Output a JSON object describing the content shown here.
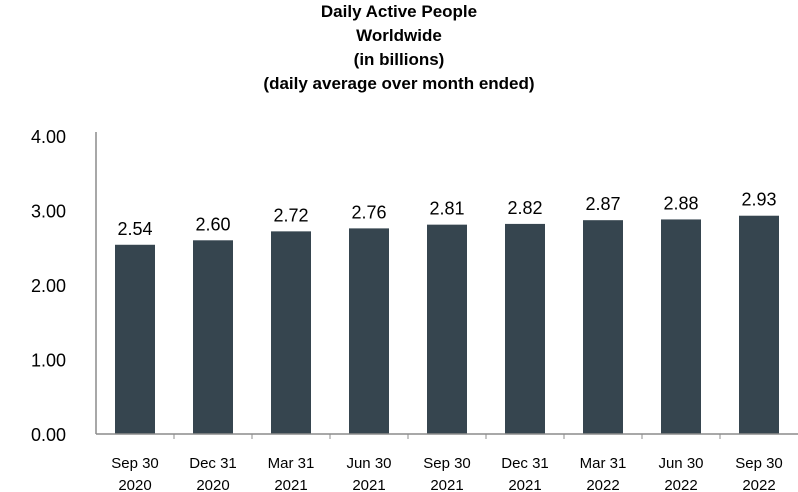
{
  "chart_data": {
    "type": "bar",
    "title_lines": [
      "Daily Active People",
      "Worldwide",
      "(in billions)",
      "(daily average over month ended)"
    ],
    "categories": [
      [
        "Sep 30",
        "2020"
      ],
      [
        "Dec 31",
        "2020"
      ],
      [
        "Mar 31",
        "2021"
      ],
      [
        "Jun 30",
        "2021"
      ],
      [
        "Sep 30",
        "2021"
      ],
      [
        "Dec 31",
        "2021"
      ],
      [
        "Mar 31",
        "2022"
      ],
      [
        "Jun 30",
        "2022"
      ],
      [
        "Sep 30",
        "2022"
      ]
    ],
    "values": [
      2.54,
      2.6,
      2.72,
      2.76,
      2.81,
      2.82,
      2.87,
      2.88,
      2.93
    ],
    "data_labels": [
      "2.54",
      "2.60",
      "2.72",
      "2.76",
      "2.81",
      "2.82",
      "2.87",
      "2.88",
      "2.93"
    ],
    "y_ticks": [
      0,
      1,
      2,
      3,
      4
    ],
    "y_tick_labels": [
      "0.00",
      "1.00",
      "2.00",
      "3.00",
      "4.00"
    ],
    "ylim": [
      0,
      4
    ],
    "grid": false,
    "legend": "none",
    "bar_color": "#36454f",
    "axis_color": "#8c8c8c"
  }
}
